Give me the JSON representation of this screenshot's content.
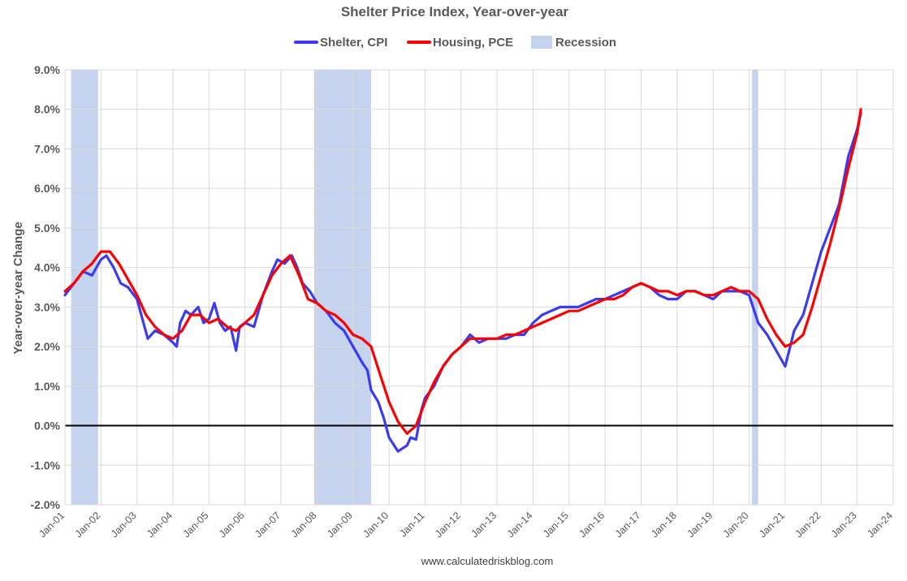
{
  "chart_data": {
    "type": "line",
    "title": "Shelter Price Index, Year-over-year",
    "ylabel": "Year-over-year Change",
    "xlabel": "",
    "source": "www.calculatedriskblog.com",
    "ylim": [
      -2.0,
      9.0
    ],
    "yticks": [
      "-2.0%",
      "-1.0%",
      "0.0%",
      "1.0%",
      "2.0%",
      "3.0%",
      "4.0%",
      "5.0%",
      "6.0%",
      "7.0%",
      "8.0%",
      "9.0%"
    ],
    "ytick_values": [
      -2,
      -1,
      0,
      1,
      2,
      3,
      4,
      5,
      6,
      7,
      8,
      9
    ],
    "xlim": [
      2001.0,
      2024.0
    ],
    "xticks": [
      "Jan-01",
      "Jan-02",
      "Jan-03",
      "Jan-04",
      "Jan-05",
      "Jan-06",
      "Jan-07",
      "Jan-08",
      "Jan-09",
      "Jan-10",
      "Jan-11",
      "Jan-12",
      "Jan-13",
      "Jan-14",
      "Jan-15",
      "Jan-16",
      "Jan-17",
      "Jan-18",
      "Jan-19",
      "Jan-20",
      "Jan-21",
      "Jan-22",
      "Jan-23",
      "Jan-24"
    ],
    "xtick_values": [
      2001,
      2002,
      2003,
      2004,
      2005,
      2006,
      2007,
      2008,
      2009,
      2010,
      2011,
      2012,
      2013,
      2014,
      2015,
      2016,
      2017,
      2018,
      2019,
      2020,
      2021,
      2022,
      2023,
      2024
    ],
    "grid": "vertical and horizontal",
    "legend_position": "top-center",
    "recessions": [
      {
        "start": 2001.17,
        "end": 2001.92
      },
      {
        "start": 2007.92,
        "end": 2009.5
      },
      {
        "start": 2020.08,
        "end": 2020.25
      }
    ],
    "recession_label": "Recession",
    "recession_color": "#c5d3ee",
    "zero_line_color": "#000000",
    "series": [
      {
        "name": "Shelter, CPI",
        "color": "#3b3bf0",
        "points": [
          [
            2001.0,
            3.3
          ],
          [
            2001.25,
            3.6
          ],
          [
            2001.5,
            3.9
          ],
          [
            2001.75,
            3.8
          ],
          [
            2002.0,
            4.2
          ],
          [
            2002.15,
            4.3
          ],
          [
            2002.35,
            4.0
          ],
          [
            2002.55,
            3.6
          ],
          [
            2002.75,
            3.5
          ],
          [
            2003.0,
            3.2
          ],
          [
            2003.15,
            2.7
          ],
          [
            2003.3,
            2.2
          ],
          [
            2003.5,
            2.4
          ],
          [
            2003.75,
            2.3
          ],
          [
            2004.0,
            2.1
          ],
          [
            2004.1,
            2.0
          ],
          [
            2004.2,
            2.6
          ],
          [
            2004.35,
            2.9
          ],
          [
            2004.5,
            2.8
          ],
          [
            2004.7,
            3.0
          ],
          [
            2004.85,
            2.6
          ],
          [
            2005.0,
            2.7
          ],
          [
            2005.15,
            3.1
          ],
          [
            2005.3,
            2.6
          ],
          [
            2005.45,
            2.4
          ],
          [
            2005.6,
            2.5
          ],
          [
            2005.75,
            1.9
          ],
          [
            2005.85,
            2.5
          ],
          [
            2006.0,
            2.6
          ],
          [
            2006.25,
            2.5
          ],
          [
            2006.5,
            3.3
          ],
          [
            2006.75,
            3.9
          ],
          [
            2006.9,
            4.2
          ],
          [
            2007.1,
            4.1
          ],
          [
            2007.3,
            4.3
          ],
          [
            2007.45,
            4.0
          ],
          [
            2007.6,
            3.6
          ],
          [
            2007.8,
            3.4
          ],
          [
            2008.0,
            3.1
          ],
          [
            2008.25,
            2.9
          ],
          [
            2008.5,
            2.6
          ],
          [
            2008.75,
            2.4
          ],
          [
            2009.0,
            2.0
          ],
          [
            2009.25,
            1.6
          ],
          [
            2009.4,
            1.4
          ],
          [
            2009.5,
            0.9
          ],
          [
            2009.7,
            0.6
          ],
          [
            2009.85,
            0.2
          ],
          [
            2010.0,
            -0.3
          ],
          [
            2010.25,
            -0.65
          ],
          [
            2010.5,
            -0.5
          ],
          [
            2010.6,
            -0.3
          ],
          [
            2010.75,
            -0.35
          ],
          [
            2010.9,
            0.4
          ],
          [
            2011.0,
            0.7
          ],
          [
            2011.25,
            1.0
          ],
          [
            2011.5,
            1.5
          ],
          [
            2011.75,
            1.8
          ],
          [
            2012.0,
            2.0
          ],
          [
            2012.25,
            2.3
          ],
          [
            2012.5,
            2.1
          ],
          [
            2012.75,
            2.2
          ],
          [
            2013.0,
            2.2
          ],
          [
            2013.25,
            2.2
          ],
          [
            2013.5,
            2.3
          ],
          [
            2013.75,
            2.3
          ],
          [
            2014.0,
            2.6
          ],
          [
            2014.25,
            2.8
          ],
          [
            2014.5,
            2.9
          ],
          [
            2014.75,
            3.0
          ],
          [
            2015.0,
            3.0
          ],
          [
            2015.25,
            3.0
          ],
          [
            2015.5,
            3.1
          ],
          [
            2015.75,
            3.2
          ],
          [
            2016.0,
            3.2
          ],
          [
            2016.25,
            3.3
          ],
          [
            2016.5,
            3.4
          ],
          [
            2016.75,
            3.5
          ],
          [
            2017.0,
            3.6
          ],
          [
            2017.25,
            3.5
          ],
          [
            2017.5,
            3.3
          ],
          [
            2017.75,
            3.2
          ],
          [
            2018.0,
            3.2
          ],
          [
            2018.25,
            3.4
          ],
          [
            2018.5,
            3.4
          ],
          [
            2018.75,
            3.3
          ],
          [
            2019.0,
            3.2
          ],
          [
            2019.25,
            3.4
          ],
          [
            2019.5,
            3.4
          ],
          [
            2019.75,
            3.4
          ],
          [
            2020.0,
            3.3
          ],
          [
            2020.25,
            2.6
          ],
          [
            2020.5,
            2.3
          ],
          [
            2020.75,
            1.9
          ],
          [
            2021.0,
            1.5
          ],
          [
            2021.25,
            2.4
          ],
          [
            2021.5,
            2.8
          ],
          [
            2021.75,
            3.6
          ],
          [
            2022.0,
            4.4
          ],
          [
            2022.25,
            5.0
          ],
          [
            2022.5,
            5.6
          ],
          [
            2022.75,
            6.8
          ],
          [
            2023.0,
            7.5
          ],
          [
            2023.1,
            7.9
          ]
        ]
      },
      {
        "name": "Housing, PCE",
        "color": "#ff0000",
        "points": [
          [
            2001.0,
            3.4
          ],
          [
            2001.25,
            3.6
          ],
          [
            2001.5,
            3.9
          ],
          [
            2001.75,
            4.1
          ],
          [
            2002.0,
            4.4
          ],
          [
            2002.25,
            4.4
          ],
          [
            2002.5,
            4.1
          ],
          [
            2002.75,
            3.7
          ],
          [
            2003.0,
            3.3
          ],
          [
            2003.25,
            2.8
          ],
          [
            2003.5,
            2.5
          ],
          [
            2003.75,
            2.3
          ],
          [
            2004.0,
            2.2
          ],
          [
            2004.25,
            2.4
          ],
          [
            2004.5,
            2.8
          ],
          [
            2004.75,
            2.8
          ],
          [
            2005.0,
            2.6
          ],
          [
            2005.25,
            2.7
          ],
          [
            2005.5,
            2.5
          ],
          [
            2005.75,
            2.4
          ],
          [
            2006.0,
            2.6
          ],
          [
            2006.25,
            2.8
          ],
          [
            2006.5,
            3.3
          ],
          [
            2006.75,
            3.8
          ],
          [
            2007.0,
            4.1
          ],
          [
            2007.25,
            4.3
          ],
          [
            2007.5,
            3.8
          ],
          [
            2007.75,
            3.2
          ],
          [
            2008.0,
            3.1
          ],
          [
            2008.25,
            2.9
          ],
          [
            2008.5,
            2.8
          ],
          [
            2008.75,
            2.6
          ],
          [
            2009.0,
            2.3
          ],
          [
            2009.25,
            2.2
          ],
          [
            2009.5,
            2.0
          ],
          [
            2009.75,
            1.3
          ],
          [
            2010.0,
            0.6
          ],
          [
            2010.25,
            0.1
          ],
          [
            2010.5,
            -0.2
          ],
          [
            2010.75,
            0.0
          ],
          [
            2011.0,
            0.6
          ],
          [
            2011.25,
            1.1
          ],
          [
            2011.5,
            1.5
          ],
          [
            2011.75,
            1.8
          ],
          [
            2012.0,
            2.0
          ],
          [
            2012.25,
            2.2
          ],
          [
            2012.5,
            2.2
          ],
          [
            2012.75,
            2.2
          ],
          [
            2013.0,
            2.2
          ],
          [
            2013.25,
            2.3
          ],
          [
            2013.5,
            2.3
          ],
          [
            2013.75,
            2.4
          ],
          [
            2014.0,
            2.5
          ],
          [
            2014.25,
            2.6
          ],
          [
            2014.5,
            2.7
          ],
          [
            2014.75,
            2.8
          ],
          [
            2015.0,
            2.9
          ],
          [
            2015.25,
            2.9
          ],
          [
            2015.5,
            3.0
          ],
          [
            2015.75,
            3.1
          ],
          [
            2016.0,
            3.2
          ],
          [
            2016.25,
            3.2
          ],
          [
            2016.5,
            3.3
          ],
          [
            2016.75,
            3.5
          ],
          [
            2017.0,
            3.6
          ],
          [
            2017.25,
            3.5
          ],
          [
            2017.5,
            3.4
          ],
          [
            2017.75,
            3.4
          ],
          [
            2018.0,
            3.3
          ],
          [
            2018.25,
            3.4
          ],
          [
            2018.5,
            3.4
          ],
          [
            2018.75,
            3.3
          ],
          [
            2019.0,
            3.3
          ],
          [
            2019.25,
            3.4
          ],
          [
            2019.5,
            3.5
          ],
          [
            2019.75,
            3.4
          ],
          [
            2020.0,
            3.4
          ],
          [
            2020.25,
            3.2
          ],
          [
            2020.5,
            2.7
          ],
          [
            2020.75,
            2.3
          ],
          [
            2021.0,
            2.0
          ],
          [
            2021.25,
            2.1
          ],
          [
            2021.5,
            2.3
          ],
          [
            2021.75,
            3.0
          ],
          [
            2022.0,
            3.8
          ],
          [
            2022.25,
            4.6
          ],
          [
            2022.5,
            5.5
          ],
          [
            2022.75,
            6.5
          ],
          [
            2023.0,
            7.4
          ],
          [
            2023.1,
            8.0
          ]
        ]
      }
    ]
  }
}
